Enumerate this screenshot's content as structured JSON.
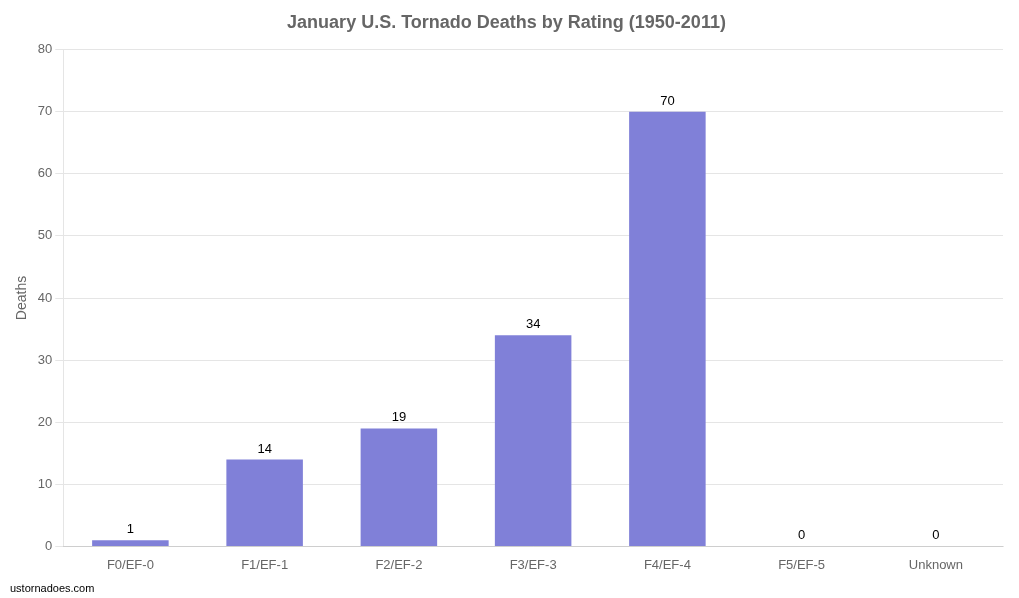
{
  "chart_data": {
    "type": "bar",
    "title": "January U.S. Tornado Deaths by Rating (1950-2011)",
    "categories": [
      "F0/EF-0",
      "F1/EF-1",
      "F2/EF-2",
      "F3/EF-3",
      "F4/EF-4",
      "F5/EF-5",
      "Unknown"
    ],
    "values": [
      1,
      14,
      19,
      34,
      70,
      0,
      0
    ],
    "color": "#8080d8",
    "ylabel": "Deaths",
    "ylim": [
      0,
      80
    ],
    "yticks": [
      0,
      10,
      20,
      30,
      40,
      50,
      60,
      70,
      80
    ],
    "grid": true,
    "data_labels": true,
    "annotations": [
      "ustornadoes.com"
    ]
  }
}
